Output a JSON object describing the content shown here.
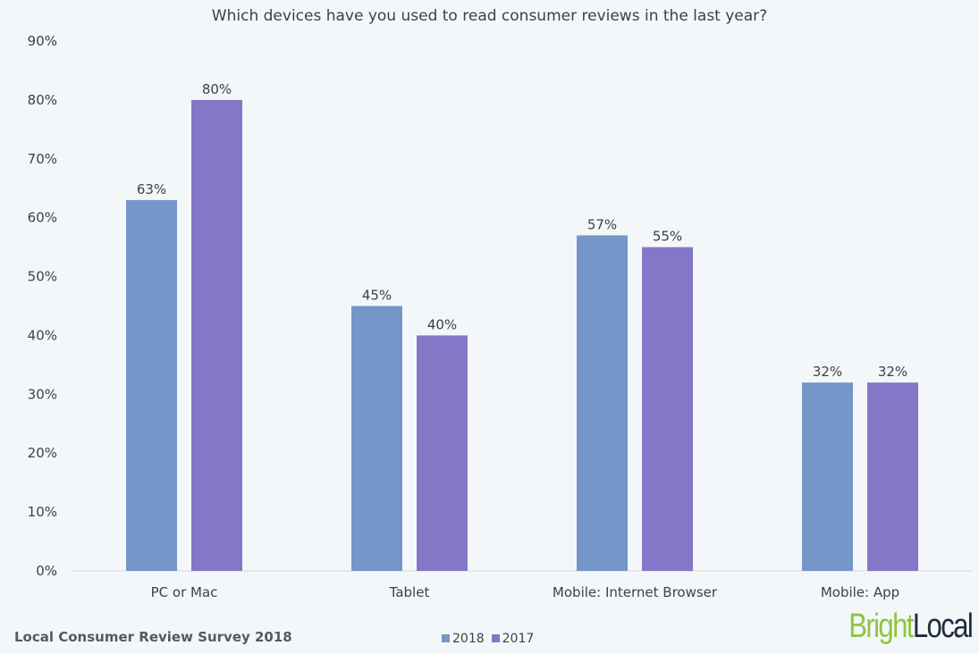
{
  "chart_data": {
    "type": "bar",
    "title": "Which devices have you used to read consumer reviews in the last year?",
    "categories": [
      "PC or Mac",
      "Tablet",
      "Mobile: Internet Browser",
      "Mobile: App"
    ],
    "series": [
      {
        "name": "2018",
        "color": "#7496c9",
        "values": [
          63,
          45,
          57,
          32
        ],
        "labels": [
          "63%",
          "45%",
          "57%",
          "32%"
        ]
      },
      {
        "name": "2017",
        "color": "#8576c8",
        "values": [
          80,
          40,
          55,
          32
        ],
        "labels": [
          "80%",
          "40%",
          "55%",
          "32%"
        ]
      }
    ],
    "ylim": [
      0,
      90
    ],
    "yticks": [
      "0%",
      "10%",
      "20%",
      "30%",
      "40%",
      "50%",
      "60%",
      "70%",
      "80%",
      "90%"
    ],
    "grid": false,
    "legend": "bottom-center"
  },
  "footer": "Local Consumer Review Survey 2018",
  "logo": {
    "bright": "Bright",
    "local": "Local"
  }
}
